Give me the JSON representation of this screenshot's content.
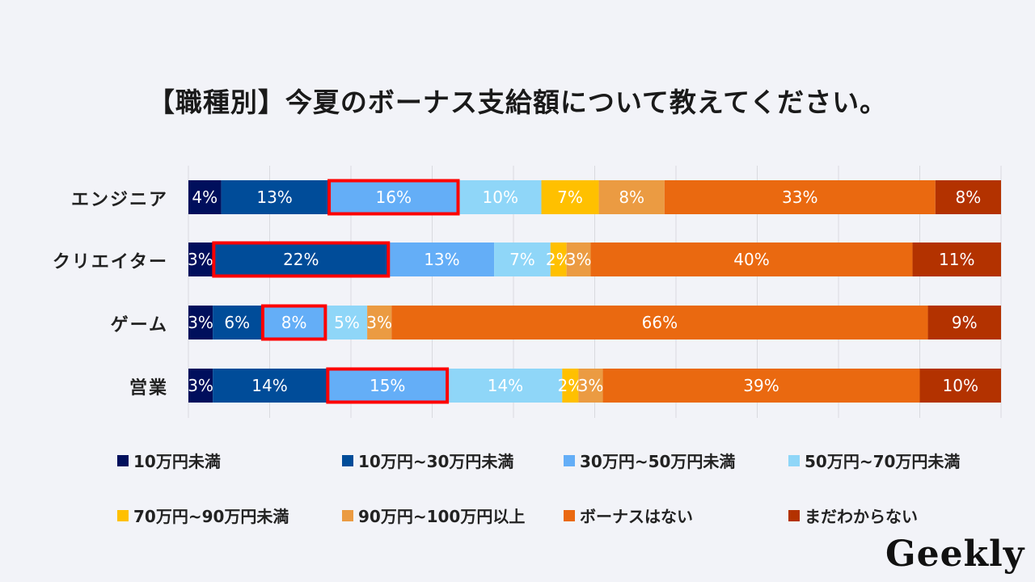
{
  "chart_data": {
    "type": "bar",
    "orientation": "horizontal",
    "stacked": "percent",
    "title": "【職種別】今夏のボーナス支給額について教えてください。",
    "xlabel": "",
    "ylabel": "",
    "xlim": [
      0,
      100
    ],
    "grid": true,
    "legend_position": "bottom",
    "categories": [
      "エンジニア",
      "クリエイター",
      "ゲーム",
      "営業"
    ],
    "series": [
      {
        "name": "10万円未満",
        "color": "#000f5c",
        "values": [
          4,
          3,
          3,
          3
        ]
      },
      {
        "name": "10万円~30万円未満",
        "color": "#004c99",
        "values": [
          13,
          22,
          6,
          14
        ]
      },
      {
        "name": "30万円~50万円未満",
        "color": "#64aef7",
        "values": [
          16,
          13,
          8,
          15
        ]
      },
      {
        "name": "50万円~70万円未満",
        "color": "#8fd6f8",
        "values": [
          10,
          7,
          5,
          14
        ]
      },
      {
        "name": "70万円~90万円未満",
        "color": "#ffc000",
        "values": [
          7,
          2,
          0,
          2
        ]
      },
      {
        "name": "90万円~100万円以上",
        "color": "#eb9b42",
        "values": [
          8,
          3,
          3,
          3
        ]
      },
      {
        "name": "ボーナスはない",
        "color": "#ea6910",
        "values": [
          33,
          40,
          66,
          39
        ]
      },
      {
        "name": "まだわからない",
        "color": "#b33200",
        "values": [
          8,
          11,
          9,
          10
        ]
      }
    ],
    "highlights": [
      {
        "category": "エンジニア",
        "series": "30万円~50万円未満",
        "color": "#ff0000"
      },
      {
        "category": "クリエイター",
        "series": "10万円~30万円未満",
        "color": "#ff0000"
      },
      {
        "category": "ゲーム",
        "series": "30万円~50万円未満",
        "color": "#ff0000"
      },
      {
        "category": "営業",
        "series": "30万円~50万円未満",
        "color": "#ff0000"
      }
    ],
    "value_suffix": "%"
  },
  "brand": {
    "logo_text": "Geekly"
  }
}
